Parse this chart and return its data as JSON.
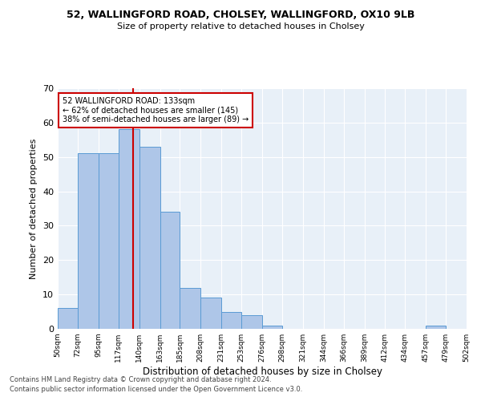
{
  "title1": "52, WALLINGFORD ROAD, CHOLSEY, WALLINGFORD, OX10 9LB",
  "title2": "Size of property relative to detached houses in Cholsey",
  "xlabel": "Distribution of detached houses by size in Cholsey",
  "ylabel": "Number of detached properties",
  "bin_edges": [
    50,
    72,
    95,
    117,
    140,
    163,
    185,
    208,
    231,
    253,
    276,
    298,
    321,
    344,
    366,
    389,
    412,
    434,
    457,
    479,
    502
  ],
  "bar_heights": [
    6,
    51,
    51,
    58,
    53,
    34,
    12,
    9,
    5,
    4,
    1,
    0,
    0,
    0,
    0,
    0,
    0,
    0,
    1,
    0
  ],
  "bar_color": "#aec6e8",
  "bar_edge_color": "#5a9bd4",
  "property_size": 133,
  "vline_color": "#cc0000",
  "annotation_line1": "52 WALLINGFORD ROAD: 133sqm",
  "annotation_line2": "← 62% of detached houses are smaller (145)",
  "annotation_line3": "38% of semi-detached houses are larger (89) →",
  "annotation_box_color": "#ffffff",
  "annotation_box_edge": "#cc0000",
  "ylim": [
    0,
    70
  ],
  "yticks": [
    0,
    10,
    20,
    30,
    40,
    50,
    60,
    70
  ],
  "x_tick_labels": [
    "50sqm",
    "72sqm",
    "95sqm",
    "117sqm",
    "140sqm",
    "163sqm",
    "185sqm",
    "208sqm",
    "231sqm",
    "253sqm",
    "276sqm",
    "298sqm",
    "321sqm",
    "344sqm",
    "366sqm",
    "389sqm",
    "412sqm",
    "434sqm",
    "457sqm",
    "479sqm",
    "502sqm"
  ],
  "background_color": "#e8f0f8",
  "grid_color": "#ffffff",
  "footer1": "Contains HM Land Registry data © Crown copyright and database right 2024.",
  "footer2": "Contains public sector information licensed under the Open Government Licence v3.0."
}
